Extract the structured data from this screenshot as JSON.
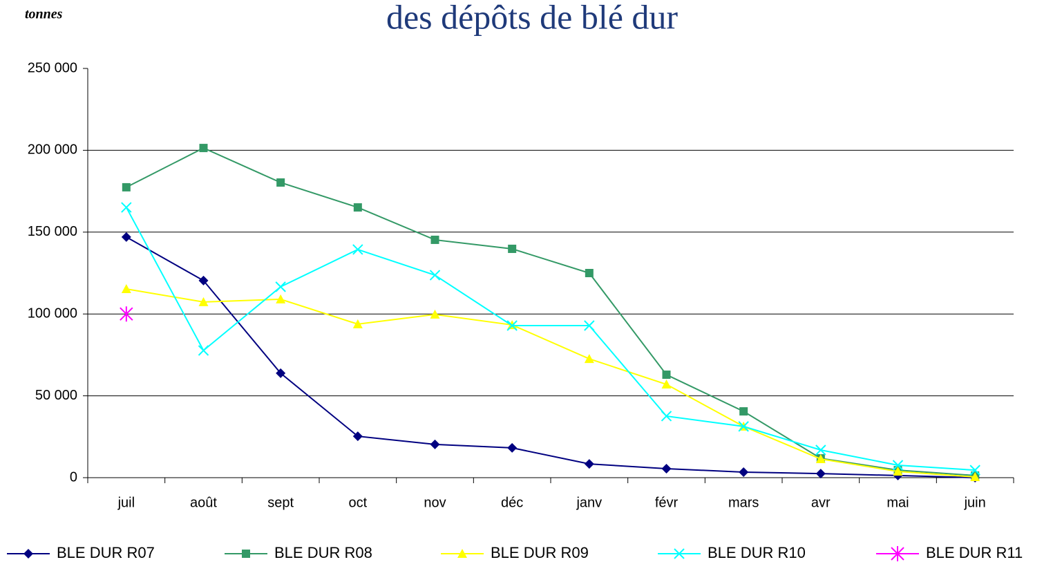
{
  "chart_data": {
    "type": "line",
    "title": "des dépôts de blé dur",
    "y_label": "tonnes",
    "categories": [
      "juil",
      "août",
      "sept",
      "oct",
      "nov",
      "déc",
      "janv",
      "févr",
      "mars",
      "avr",
      "mai",
      "juin"
    ],
    "series": [
      {
        "name": "BLE DUR R07",
        "color": "#000080",
        "marker": "diamond",
        "values": [
          147000,
          120400,
          63800,
          25300,
          20300,
          18200,
          8400,
          5500,
          3400,
          2500,
          1300,
          0
        ]
      },
      {
        "name": "BLE DUR R08",
        "color": "#339966",
        "marker": "square",
        "values": [
          177400,
          201400,
          180300,
          165100,
          145300,
          139800,
          125000,
          62900,
          40500,
          11800,
          4600,
          1300
        ]
      },
      {
        "name": "BLE DUR R09",
        "color": "#ffff00",
        "marker": "triangle",
        "values": [
          115300,
          107300,
          109000,
          93800,
          99700,
          93300,
          72600,
          57000,
          31300,
          11400,
          3800,
          400
        ]
      },
      {
        "name": "BLE DUR R10",
        "color": "#00ffff",
        "marker": "x",
        "values": [
          165100,
          77700,
          116600,
          139400,
          123700,
          92900,
          92900,
          37600,
          31300,
          16900,
          7600,
          4600
        ]
      },
      {
        "name": "BLE DUR R11",
        "color": "#ff00ff",
        "marker": "asterisk",
        "values": [
          100000,
          null,
          null,
          null,
          null,
          null,
          null,
          null,
          null,
          null,
          null,
          null
        ]
      }
    ],
    "ylim": [
      0,
      250000
    ],
    "yticks": [
      {
        "value": 0,
        "label": "0"
      },
      {
        "value": 50000,
        "label": "50 000"
      },
      {
        "value": 100000,
        "label": "100 000"
      },
      {
        "value": 150000,
        "label": "150 000"
      },
      {
        "value": 200000,
        "label": "200 000"
      },
      {
        "value": 250000,
        "label": "250 000"
      }
    ],
    "grid": true,
    "legend": "bottom"
  }
}
